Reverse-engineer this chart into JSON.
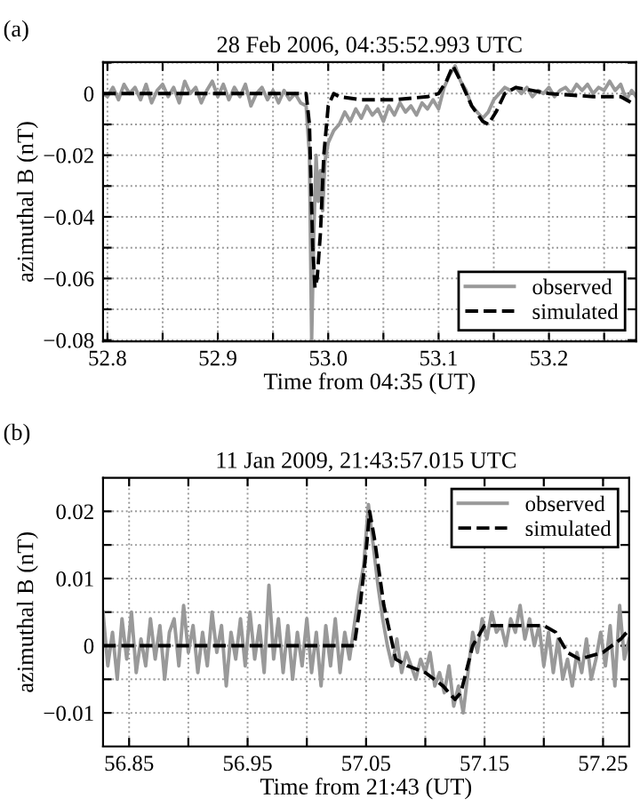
{
  "chart_data": [
    {
      "type": "line",
      "title": "28 Feb 2006, 04:35:52.993 UTC",
      "xlabel": "Time from 04:35 (UT)",
      "ylabel": "azimuthal B (nT)",
      "annotations": [
        "(a)"
      ],
      "xlim": [
        52.796,
        53.279
      ],
      "ylim": [
        -0.0804,
        0.0102
      ],
      "xticks": [
        {
          "value": 52.8,
          "label": "52.8"
        },
        {
          "value": 52.85,
          "label": null
        },
        {
          "value": 52.9,
          "label": "52.9"
        },
        {
          "value": 52.95,
          "label": null
        },
        {
          "value": 53.0,
          "label": "53.0"
        },
        {
          "value": 53.05,
          "label": null
        },
        {
          "value": 53.1,
          "label": "53.1"
        },
        {
          "value": 53.15,
          "label": null
        },
        {
          "value": 53.2,
          "label": "53.2"
        },
        {
          "value": 53.25,
          "label": null
        }
      ],
      "yticks": [
        {
          "value": -0.08,
          "label": "−0.08"
        },
        {
          "value": -0.07,
          "label": null
        },
        {
          "value": -0.06,
          "label": "−0.06"
        },
        {
          "value": -0.05,
          "label": null
        },
        {
          "value": -0.04,
          "label": "−0.04"
        },
        {
          "value": -0.03,
          "label": null
        },
        {
          "value": -0.02,
          "label": "−0.02"
        },
        {
          "value": -0.01,
          "label": null
        },
        {
          "value": 0,
          "label": "0"
        },
        {
          "value": 0.01,
          "label": null
        }
      ],
      "grid": true,
      "legend": "bottom right",
      "series": [
        {
          "name": "observed",
          "color": "#999999",
          "line_style": "solid",
          "x": [
            52.796,
            52.8,
            52.805,
            52.81,
            52.815,
            52.82,
            52.825,
            52.83,
            52.835,
            52.84,
            52.845,
            52.85,
            52.855,
            52.86,
            52.865,
            52.87,
            52.875,
            52.88,
            52.885,
            52.89,
            52.895,
            52.9,
            52.905,
            52.91,
            52.915,
            52.92,
            52.925,
            52.93,
            52.935,
            52.94,
            52.945,
            52.95,
            52.955,
            52.96,
            52.965,
            52.97,
            52.975,
            52.98,
            52.983,
            52.985,
            52.987,
            52.989,
            52.991,
            52.993,
            52.995,
            52.997,
            53.0,
            53.005,
            53.01,
            53.015,
            53.02,
            53.025,
            53.03,
            53.035,
            53.04,
            53.045,
            53.05,
            53.055,
            53.06,
            53.065,
            53.07,
            53.075,
            53.08,
            53.085,
            53.09,
            53.095,
            53.1,
            53.105,
            53.11,
            53.115,
            53.12,
            53.125,
            53.13,
            53.135,
            53.14,
            53.145,
            53.15,
            53.155,
            53.16,
            53.165,
            53.17,
            53.175,
            53.18,
            53.185,
            53.19,
            53.195,
            53.2,
            53.205,
            53.21,
            53.215,
            53.22,
            53.225,
            53.23,
            53.235,
            53.24,
            53.245,
            53.25,
            53.255,
            53.26,
            53.265,
            53.27,
            53.275,
            53.279
          ],
          "values": [
            0.0,
            -0.001,
            0.002,
            -0.002,
            0.003,
            0.0,
            0.002,
            -0.002,
            0.003,
            -0.003,
            0.001,
            0.003,
            -0.001,
            0.002,
            -0.003,
            0.004,
            0.0,
            0.002,
            -0.003,
            0.001,
            0.004,
            -0.001,
            0.003,
            -0.002,
            0.002,
            -0.001,
            0.003,
            -0.004,
            0.0,
            0.002,
            -0.002,
            0.001,
            -0.003,
            0.001,
            -0.002,
            0.0,
            -0.003,
            -0.004,
            -0.02,
            -0.08,
            -0.045,
            -0.02,
            -0.035,
            -0.025,
            -0.038,
            -0.022,
            -0.016,
            -0.012,
            -0.01,
            -0.006,
            -0.009,
            -0.005,
            -0.008,
            -0.004,
            -0.007,
            -0.005,
            -0.009,
            -0.004,
            -0.007,
            -0.003,
            -0.006,
            -0.004,
            -0.007,
            -0.003,
            -0.005,
            -0.002,
            -0.005,
            0.002,
            0.006,
            0.009,
            0.004,
            0.001,
            -0.004,
            -0.006,
            -0.008,
            -0.006,
            -0.002,
            0.0,
            0.002,
            0.001,
            0.002,
            0.0,
            0.002,
            -0.001,
            0.001,
            0.0,
            0.002,
            -0.001,
            0.001,
            0.002,
            0.0,
            0.003,
            0.001,
            0.003,
            0.0,
            0.002,
            0.001,
            0.004,
            0.001,
            0.003,
            -0.002,
            0.001,
            -0.001
          ]
        },
        {
          "name": "simulated",
          "color": "#000000",
          "line_style": "dashed",
          "x": [
            52.796,
            52.98,
            52.983,
            52.986,
            52.988,
            52.99,
            52.993,
            52.996,
            53.0,
            53.005,
            53.01,
            53.03,
            53.06,
            53.09,
            53.1,
            53.107,
            53.113,
            53.12,
            53.13,
            53.14,
            53.145,
            53.152,
            53.16,
            53.17,
            53.2,
            53.24,
            53.265,
            53.275
          ],
          "values": [
            0,
            0,
            -0.01,
            -0.05,
            -0.063,
            -0.06,
            -0.045,
            -0.02,
            -0.004,
            0.0,
            -0.001,
            -0.002,
            -0.002,
            -0.001,
            0.0,
            0.004,
            0.009,
            0.004,
            -0.004,
            -0.009,
            -0.01,
            -0.006,
            0.0,
            0.002,
            0.0,
            -0.001,
            -0.001,
            -0.003
          ]
        }
      ]
    },
    {
      "type": "line",
      "title": "11 Jan 2009, 21:43:57.015 UTC",
      "xlabel": "Time from 21:43 (UT)",
      "ylabel": "azimuthal B (nT)",
      "annotations": [
        "(b)"
      ],
      "xlim": [
        56.828,
        57.272
      ],
      "ylim": [
        -0.015,
        0.025
      ],
      "xticks": [
        {
          "value": 56.85,
          "label": "56.85"
        },
        {
          "value": 56.9,
          "label": null
        },
        {
          "value": 56.95,
          "label": "56.95"
        },
        {
          "value": 57.0,
          "label": null
        },
        {
          "value": 57.05,
          "label": "57.05"
        },
        {
          "value": 57.1,
          "label": null
        },
        {
          "value": 57.15,
          "label": "57.15"
        },
        {
          "value": 57.2,
          "label": null
        },
        {
          "value": 57.25,
          "label": "57.25"
        }
      ],
      "yticks": [
        {
          "value": -0.01,
          "label": "−0.01"
        },
        {
          "value": -0.005,
          "label": null
        },
        {
          "value": 0,
          "label": "0"
        },
        {
          "value": 0.005,
          "label": null
        },
        {
          "value": 0.01,
          "label": "0.01"
        },
        {
          "value": 0.015,
          "label": null
        },
        {
          "value": 0.02,
          "label": "0.02"
        }
      ],
      "grid": true,
      "legend": "top right",
      "series": [
        {
          "name": "observed",
          "color": "#999999",
          "line_style": "solid",
          "x": [
            56.828,
            56.832,
            56.836,
            56.84,
            56.844,
            56.848,
            56.852,
            56.856,
            56.86,
            56.864,
            56.868,
            56.872,
            56.876,
            56.88,
            56.884,
            56.888,
            56.892,
            56.896,
            56.9,
            56.904,
            56.908,
            56.912,
            56.916,
            56.92,
            56.924,
            56.928,
            56.932,
            56.936,
            56.94,
            56.944,
            56.948,
            56.952,
            56.956,
            56.96,
            56.964,
            56.968,
            56.972,
            56.976,
            56.98,
            56.984,
            56.988,
            56.992,
            56.996,
            57.0,
            57.004,
            57.008,
            57.012,
            57.016,
            57.02,
            57.024,
            57.028,
            57.032,
            57.036,
            57.04,
            57.044,
            57.048,
            57.052,
            57.056,
            57.06,
            57.064,
            57.068,
            57.072,
            57.076,
            57.08,
            57.084,
            57.088,
            57.092,
            57.096,
            57.1,
            57.104,
            57.108,
            57.112,
            57.116,
            57.12,
            57.124,
            57.128,
            57.132,
            57.136,
            57.14,
            57.144,
            57.148,
            57.152,
            57.156,
            57.16,
            57.164,
            57.168,
            57.172,
            57.176,
            57.18,
            57.184,
            57.188,
            57.192,
            57.196,
            57.2,
            57.204,
            57.208,
            57.212,
            57.216,
            57.22,
            57.224,
            57.228,
            57.232,
            57.236,
            57.24,
            57.244,
            57.248,
            57.252,
            57.256,
            57.26,
            57.264,
            57.268,
            57.272
          ],
          "values": [
            0.005,
            -0.003,
            0.002,
            -0.005,
            0.004,
            -0.002,
            0.005,
            -0.004,
            0.001,
            -0.003,
            0.004,
            -0.002,
            0.003,
            -0.005,
            0.002,
            0.004,
            -0.003,
            0.006,
            -0.001,
            0.003,
            -0.004,
            0.002,
            -0.003,
            0.005,
            -0.001,
            0.003,
            -0.006,
            0.002,
            -0.002,
            0.004,
            -0.003,
            0.005,
            -0.002,
            0.003,
            -0.004,
            0.009,
            -0.002,
            0.004,
            -0.004,
            0.003,
            -0.005,
            0.002,
            -0.003,
            0.004,
            -0.004,
            0.002,
            -0.006,
            0.003,
            -0.003,
            0.004,
            -0.004,
            0.002,
            -0.002,
            0.003,
            0.008,
            0.012,
            0.021,
            0.015,
            0.009,
            0.004,
            0.0,
            -0.003,
            0.001,
            -0.004,
            -0.001,
            -0.003,
            -0.005,
            -0.002,
            -0.004,
            -0.001,
            -0.006,
            -0.004,
            -0.007,
            -0.003,
            -0.009,
            -0.006,
            -0.01,
            -0.004,
            0.002,
            -0.001,
            0.004,
            0.001,
            0.005,
            0.002,
            0.003,
            0.0,
            0.004,
            0.002,
            0.006,
            0.001,
            0.004,
            0.0,
            0.003,
            -0.003,
            0.002,
            -0.004,
            0.001,
            -0.005,
            -0.002,
            -0.006,
            -0.001,
            -0.004,
            0.001,
            -0.005,
            -0.002,
            0.002,
            -0.003,
            0.003,
            -0.006,
            0.006,
            -0.002,
            0.001
          ]
        },
        {
          "name": "simulated",
          "color": "#000000",
          "line_style": "dashed",
          "x": [
            56.828,
            57.04,
            57.045,
            57.05,
            57.053,
            57.057,
            57.065,
            57.075,
            57.085,
            57.1,
            57.115,
            57.125,
            57.13,
            57.14,
            57.15,
            57.17,
            57.2,
            57.21,
            57.22,
            57.23,
            57.25,
            57.265,
            57.27
          ],
          "values": [
            0,
            0,
            0.006,
            0.014,
            0.02,
            0.016,
            0.006,
            -0.002,
            -0.003,
            -0.004,
            -0.006,
            -0.008,
            -0.007,
            0.0,
            0.003,
            0.003,
            0.003,
            0.002,
            -0.001,
            -0.002,
            -0.001,
            0.001,
            0.002
          ]
        }
      ]
    }
  ]
}
